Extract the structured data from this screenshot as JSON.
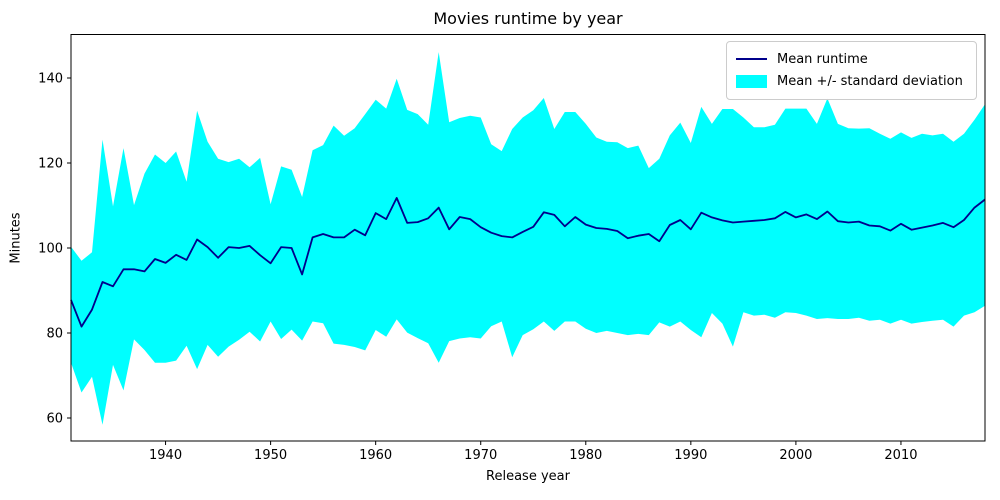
{
  "figure": {
    "title": "Movies runtime by year"
  },
  "axes": {
    "xlabel": "Release year",
    "ylabel": "Minutes",
    "x_ticks": [
      1940,
      1950,
      1960,
      1970,
      1980,
      1990,
      2000,
      2010
    ],
    "y_ticks": [
      60,
      80,
      100,
      120,
      140
    ]
  },
  "legend": {
    "entries": [
      {
        "label": "Mean runtime",
        "type": "line"
      },
      {
        "label": "Mean +/- standard deviation",
        "type": "patch"
      }
    ]
  },
  "colors": {
    "mean_line": "#00008b",
    "band": "#00ffff",
    "text": "#000000",
    "spine": "#000000",
    "legend_border": "#cccccc"
  },
  "chart_data": {
    "type": "line",
    "title": "Movies runtime by year",
    "xlabel": "Release year",
    "ylabel": "Minutes",
    "xlim": [
      1931,
      2018
    ],
    "ylim": [
      54.5,
      150.5
    ],
    "grid": false,
    "legend_position": "upper right",
    "x": [
      1931,
      1932,
      1933,
      1934,
      1935,
      1936,
      1937,
      1938,
      1939,
      1940,
      1941,
      1942,
      1943,
      1944,
      1945,
      1946,
      1947,
      1948,
      1949,
      1950,
      1951,
      1952,
      1953,
      1954,
      1955,
      1956,
      1957,
      1958,
      1959,
      1960,
      1961,
      1962,
      1963,
      1964,
      1965,
      1966,
      1967,
      1968,
      1969,
      1970,
      1971,
      1972,
      1973,
      1974,
      1975,
      1976,
      1977,
      1978,
      1979,
      1980,
      1981,
      1982,
      1983,
      1984,
      1985,
      1986,
      1987,
      1988,
      1989,
      1990,
      1991,
      1992,
      1993,
      1994,
      1995,
      1996,
      1997,
      1998,
      1999,
      2000,
      2001,
      2002,
      2003,
      2004,
      2005,
      2006,
      2007,
      2008,
      2009,
      2010,
      2011,
      2012,
      2013,
      2014,
      2015,
      2016,
      2017,
      2018
    ],
    "series": [
      {
        "name": "Mean runtime",
        "values": [
          87.8,
          81.5,
          85.5,
          92,
          91,
          95,
          95,
          94.5,
          97.4,
          96.5,
          98.4,
          97.2,
          102,
          100.2,
          97.7,
          100.2,
          100,
          100.5,
          98.3,
          96.4,
          100.2,
          100,
          93.8,
          102.5,
          103.3,
          102.5,
          102.5,
          104.3,
          103,
          108.2,
          106.8,
          111.8,
          105.9,
          106.1,
          107,
          109.5,
          104.4,
          107.3,
          106.8,
          104.9,
          103.6,
          102.8,
          102.5,
          103.8,
          105,
          108.4,
          107.8,
          105.1,
          107.3,
          105.5,
          104.7,
          104.5,
          104,
          102.3,
          102.9,
          103.3,
          101.6,
          105.4,
          106.6,
          104.4,
          108.3,
          107.2,
          106.5,
          106,
          106.2,
          106.4,
          106.6,
          107,
          108.5,
          107.2,
          107.9,
          106.8,
          108.6,
          106.3,
          106,
          106.2,
          105.3,
          105.1,
          104.1,
          105.7,
          104.3,
          104.8,
          105.3,
          105.9,
          104.9,
          106.6,
          109.5,
          111.4
        ]
      },
      {
        "name": "Mean + standard deviation",
        "values": [
          100.3,
          97,
          99,
          125.5,
          109.8,
          123.5,
          110.1,
          117.5,
          122,
          120,
          122.7,
          115.6,
          132.3,
          125,
          121,
          120.2,
          121,
          119,
          121.2,
          110.3,
          119.2,
          118.4,
          112,
          123,
          124.2,
          128.8,
          126.4,
          128.2,
          131.5,
          134.9,
          132.8,
          139.8,
          132.5,
          131.5,
          129,
          146.1,
          129.6,
          130.6,
          131.1,
          130.7,
          124.4,
          122.8,
          128,
          130.7,
          132.4,
          135.3,
          128,
          132,
          132,
          129.2,
          126,
          125,
          124.9,
          123.5,
          124.1,
          118.8,
          121,
          126.5,
          129.5,
          124.7,
          133.2,
          129.2,
          132.7,
          132.7,
          130.7,
          128.4,
          128.4,
          129,
          132.8,
          132.8,
          132.8,
          129.2,
          135.2,
          129.2,
          128.2,
          128.1,
          128.2,
          126.9,
          125.7,
          127.2,
          125.9,
          126.9,
          126.5,
          126.9,
          125,
          126.9,
          130.2,
          133.8
        ]
      },
      {
        "name": "Mean - standard deviation",
        "values": [
          73,
          66,
          69.7,
          58.4,
          72.5,
          66.5,
          78.5,
          76,
          73,
          73,
          73.5,
          77,
          71.5,
          77.2,
          74.4,
          76.8,
          78.4,
          80.3,
          78,
          82.7,
          78.6,
          80.8,
          78.2,
          82.7,
          82.3,
          77.5,
          77.2,
          76.7,
          75.9,
          80.7,
          79.1,
          83.2,
          80.1,
          78.8,
          77.6,
          73,
          78.1,
          78.7,
          79,
          78.7,
          81.6,
          82.7,
          74.3,
          79.5,
          80.9,
          82.7,
          80.5,
          82.7,
          82.7,
          81,
          80,
          80.5,
          80,
          79.5,
          79.8,
          79.5,
          82.5,
          81.5,
          82.7,
          80.7,
          79,
          84.7,
          82.2,
          76.8,
          84.9,
          84.1,
          84.3,
          83.6,
          84.9,
          84.7,
          84.1,
          83.3,
          83.5,
          83.3,
          83.3,
          83.6,
          82.9,
          83.1,
          82.2,
          83.1,
          82.2,
          82.6,
          82.9,
          83.1,
          81.5,
          84.1,
          84.9,
          86.4
        ]
      }
    ]
  }
}
